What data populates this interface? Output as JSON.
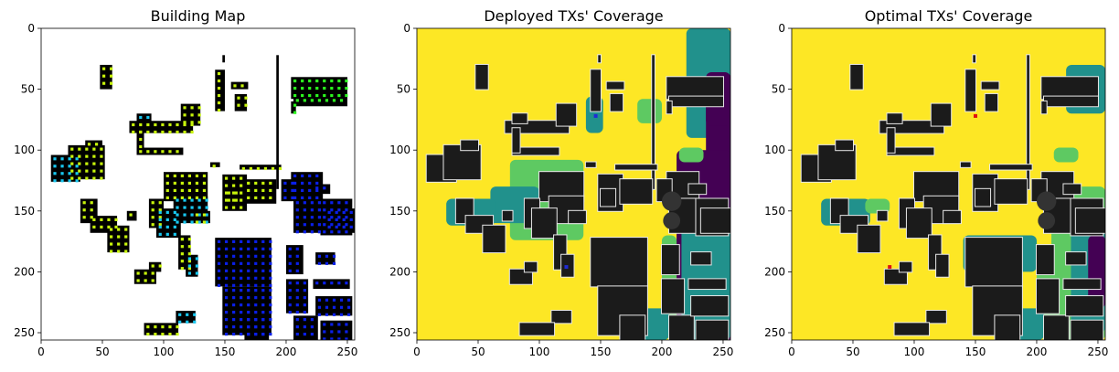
{
  "chart_data": [
    {
      "type": "heatmap",
      "title": "Building Map",
      "xlabel": "",
      "ylabel": "",
      "xlim": [
        0,
        256
      ],
      "ylim": [
        256,
        0
      ],
      "xticks": [
        0,
        50,
        100,
        150,
        200,
        250
      ],
      "yticks": [
        0,
        50,
        100,
        150,
        200,
        250
      ],
      "background": "#ffffff",
      "building_color": "#000000",
      "marker_colors": [
        "#c7f40b",
        "#2bf61e",
        "#18c7f0",
        "#0a1fe8"
      ]
    },
    {
      "type": "heatmap",
      "title": "Deployed TXs' Coverage",
      "xlabel": "",
      "ylabel": "",
      "xlim": [
        0,
        256
      ],
      "ylim": [
        256,
        0
      ],
      "xticks": [
        0,
        50,
        100,
        150,
        200,
        250
      ],
      "yticks": [
        0,
        50,
        100,
        150,
        200,
        250
      ],
      "colormap": [
        "#440154",
        "#21918c",
        "#5ec962",
        "#fde725"
      ],
      "building_color": "#1b1b1b",
      "tx_marker_color": "#1f2bd6"
    },
    {
      "type": "heatmap",
      "title": "Optimal TXs' Coverage",
      "xlabel": "",
      "ylabel": "",
      "xlim": [
        0,
        256
      ],
      "ylim": [
        256,
        0
      ],
      "xticks": [
        0,
        50,
        100,
        150,
        200,
        250
      ],
      "yticks": [
        0,
        50,
        100,
        150,
        200,
        250
      ],
      "colormap": [
        "#440154",
        "#21918c",
        "#5ec962",
        "#fde725"
      ],
      "building_color": "#1b1b1b",
      "tx_marker_color": "#e01010"
    }
  ]
}
